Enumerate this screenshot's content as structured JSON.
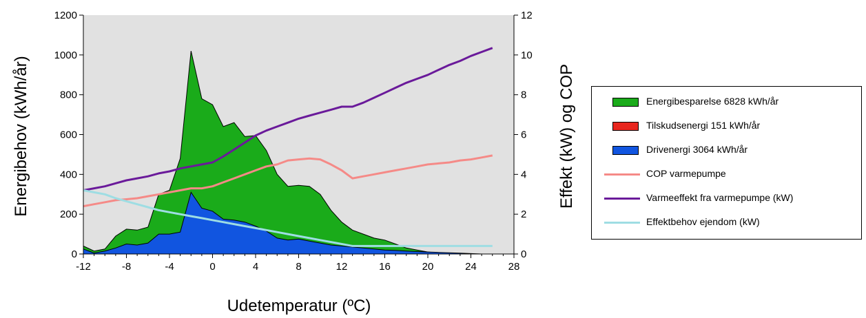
{
  "chart_data": {
    "type": "area",
    "xlabel": "Udetemperatur (ºC)",
    "ylabel_left": "Energibehov (kWh/år)",
    "ylabel_right": "Effekt (kW) og COP",
    "xlim": [
      -12,
      28
    ],
    "ylim_left": [
      0,
      1200
    ],
    "ylim_right": [
      0,
      12
    ],
    "x_ticks": [
      -12,
      -8,
      -4,
      0,
      4,
      8,
      12,
      16,
      20,
      24,
      28
    ],
    "y_left_ticks": [
      0,
      200,
      400,
      600,
      800,
      1000,
      1200
    ],
    "y_right_ticks": [
      0,
      2,
      4,
      6,
      8,
      10,
      12
    ],
    "grid": false,
    "plot_background": "#e1e1e1",
    "legend_position": "right",
    "x": [
      -12,
      -11,
      -10,
      -9,
      -8,
      -7,
      -6,
      -5,
      -4,
      -3,
      -2,
      -1,
      0,
      1,
      2,
      3,
      4,
      5,
      6,
      7,
      8,
      9,
      10,
      11,
      12,
      13,
      14,
      15,
      16,
      17,
      18,
      19,
      20,
      21,
      22,
      23,
      24,
      25,
      26
    ],
    "series": [
      {
        "name": "Energibesparelse 6828 kWh/år",
        "kind": "area",
        "axis": "left",
        "color": "#1aab1a",
        "values": [
          40,
          15,
          25,
          90,
          125,
          120,
          135,
          300,
          320,
          480,
          1020,
          780,
          750,
          640,
          660,
          590,
          595,
          520,
          400,
          340,
          345,
          340,
          300,
          220,
          160,
          120,
          100,
          80,
          70,
          50,
          30,
          20,
          10,
          5,
          2,
          0,
          0,
          0,
          0
        ]
      },
      {
        "name": "Tilskudsenergi 151 kWh/år",
        "kind": "area",
        "axis": "left",
        "color": "#e8261e",
        "values": [
          3,
          2,
          2,
          3,
          4,
          5,
          6,
          7,
          8,
          9,
          12,
          10,
          9,
          8,
          7,
          5,
          4,
          3,
          2,
          2,
          1,
          1,
          1,
          1,
          0,
          0,
          0,
          0,
          0,
          0,
          0,
          0,
          0,
          0,
          0,
          0,
          0,
          0,
          0
        ]
      },
      {
        "name": "Drivenergi 3064 kWh/år",
        "kind": "area",
        "axis": "left",
        "color": "#1155e0",
        "values": [
          25,
          5,
          15,
          30,
          50,
          45,
          55,
          100,
          100,
          110,
          310,
          230,
          215,
          175,
          170,
          160,
          140,
          115,
          80,
          70,
          75,
          65,
          55,
          45,
          40,
          35,
          30,
          25,
          20,
          18,
          15,
          12,
          10,
          8,
          6,
          4,
          2,
          0,
          0
        ]
      },
      {
        "name": "COP varmepumpe",
        "kind": "line",
        "axis": "right",
        "color": "#f58a87",
        "values": [
          2.4,
          2.5,
          2.6,
          2.7,
          2.75,
          2.8,
          2.9,
          3.0,
          3.1,
          3.2,
          3.3,
          3.3,
          3.4,
          3.6,
          3.8,
          4.0,
          4.2,
          4.4,
          4.5,
          4.7,
          4.75,
          4.8,
          4.75,
          4.5,
          4.2,
          3.8,
          3.9,
          4.0,
          4.1,
          4.2,
          4.3,
          4.4,
          4.5,
          4.55,
          4.6,
          4.7,
          4.75,
          4.85,
          4.95
        ]
      },
      {
        "name": "Varmeeffekt fra varmepumpe (kW)",
        "kind": "line",
        "axis": "right",
        "color": "#6a1a9a",
        "values": [
          3.2,
          3.3,
          3.4,
          3.55,
          3.7,
          3.8,
          3.9,
          4.05,
          4.15,
          4.3,
          4.4,
          4.5,
          4.6,
          4.9,
          5.25,
          5.6,
          5.95,
          6.2,
          6.4,
          6.6,
          6.8,
          6.95,
          7.1,
          7.25,
          7.4,
          7.4,
          7.6,
          7.85,
          8.1,
          8.35,
          8.6,
          8.8,
          9.0,
          9.25,
          9.5,
          9.7,
          9.95,
          10.15,
          10.35
        ]
      },
      {
        "name": "Effektbehov ejendom (kW)",
        "kind": "line",
        "axis": "right",
        "color": "#9edde3",
        "values": [
          3.2,
          3.1,
          3.0,
          2.8,
          2.65,
          2.5,
          2.35,
          2.2,
          2.1,
          2.0,
          1.9,
          1.8,
          1.7,
          1.6,
          1.5,
          1.4,
          1.3,
          1.2,
          1.1,
          1.0,
          0.9,
          0.8,
          0.7,
          0.6,
          0.5,
          0.4,
          0.4,
          0.4,
          0.4,
          0.4,
          0.4,
          0.4,
          0.4,
          0.4,
          0.4,
          0.4,
          0.4,
          0.4,
          0.4
        ]
      }
    ]
  }
}
